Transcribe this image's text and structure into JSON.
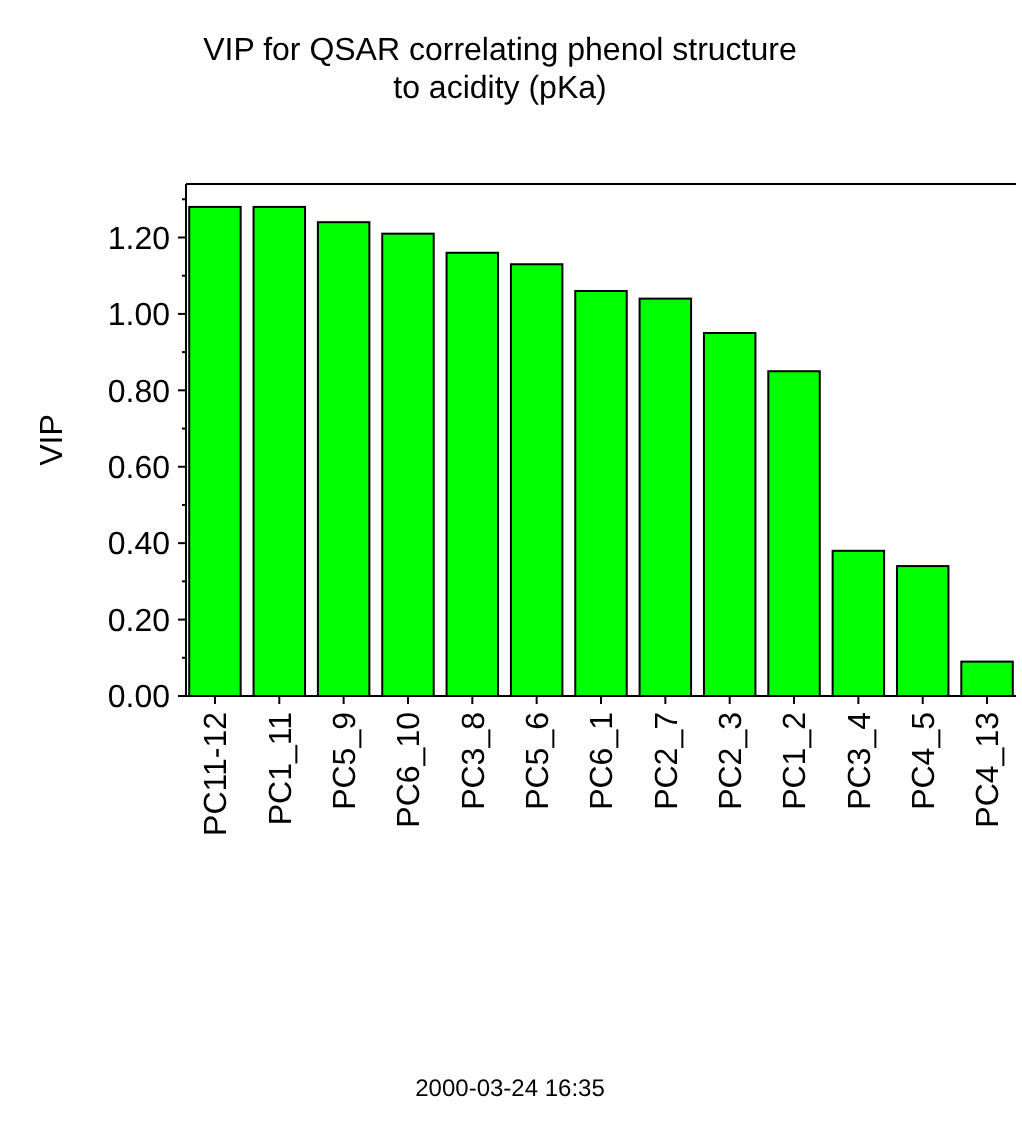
{
  "chart_data": {
    "type": "bar",
    "title": "VIP for QSAR correlating phenol structure\nto acidity  (pKa)",
    "ylabel": "VIP",
    "categories": [
      "PC11-12",
      "PC1_11",
      "PC5_9",
      "PC6_10",
      "PC3_8",
      "PC5_6",
      "PC6_1",
      "PC2_7",
      "PC2_3",
      "PC1_2",
      "PC3_4",
      "PC4_5",
      "PC4_13"
    ],
    "values": [
      1.28,
      1.28,
      1.24,
      1.21,
      1.16,
      1.13,
      1.06,
      1.04,
      0.95,
      0.85,
      0.38,
      0.34,
      0.09
    ],
    "color": "#00ff00",
    "ylim": [
      0,
      1.34
    ],
    "yticks": [
      {
        "value": 0,
        "label": "0.00"
      },
      {
        "value": 0.2,
        "label": "0.20"
      },
      {
        "value": 0.4,
        "label": "0.40"
      },
      {
        "value": 0.6,
        "label": "0.60"
      },
      {
        "value": 0.8,
        "label": "0.80"
      },
      {
        "value": 1,
        "label": "1.00"
      },
      {
        "value": 1.2,
        "label": "1.20"
      }
    ],
    "annotations": [
      "2000-03-24 16:35"
    ]
  }
}
